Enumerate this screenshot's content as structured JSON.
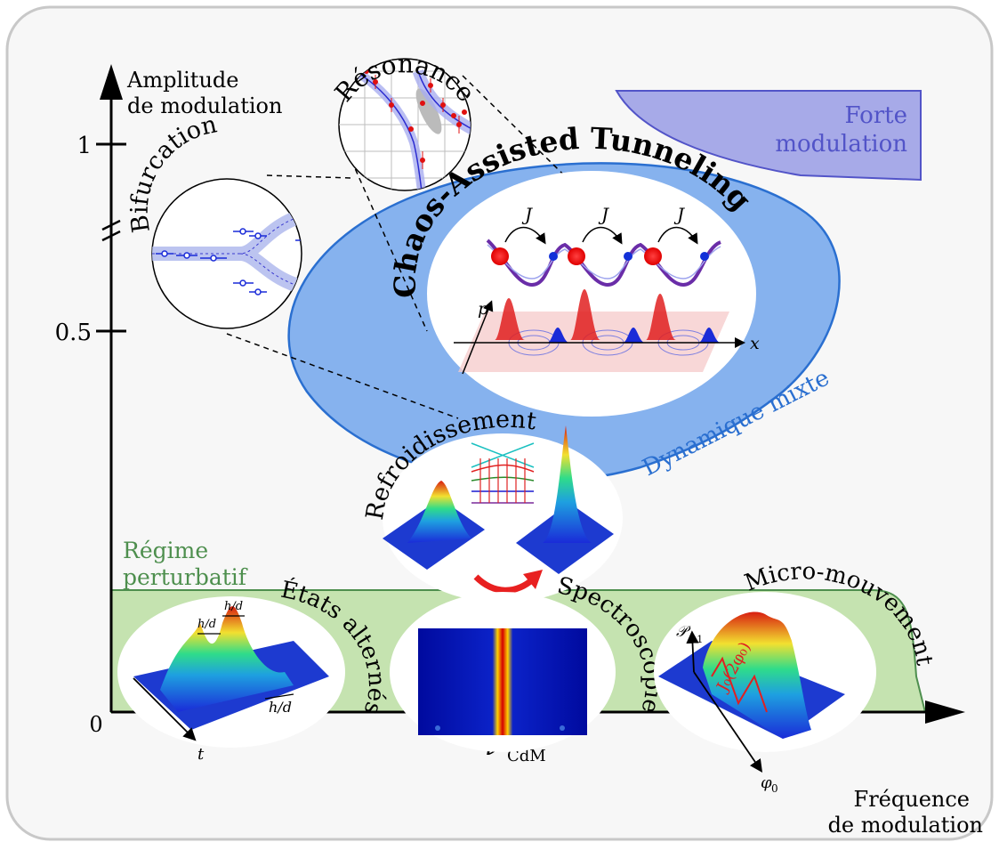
{
  "axes": {
    "y_label_line1": "Amplitude",
    "y_label_line2": "de modulation",
    "x_label_line1": "Fréquence",
    "x_label_line2": "de modulation",
    "origin": "0",
    "y_tick_1": "1",
    "y_tick_05": "0.5",
    "x_tick_symbol": "ν",
    "x_tick_sub": "CdM"
  },
  "regions": {
    "strong_line1": "Forte",
    "strong_line2": "modulation",
    "mixed": "Dynamique mixte",
    "cat": "Chaos-Assisted Tunneling",
    "perturbative_line1": "Régime",
    "perturbative_line2": "perturbatif"
  },
  "insets": {
    "resonance": "Résonance",
    "bifurcation": "Bifurcation",
    "cooling": "Refroidissement",
    "alternating": "États alternés",
    "spectroscopy": "Spectroscopie",
    "micromotion": "Micro-mouvement"
  },
  "cat_labels": {
    "coupling_1": "J",
    "coupling_2": "J",
    "coupling_3": "J",
    "momentum": "p",
    "position": "x"
  },
  "inset_labels": {
    "hd_1": "h/d",
    "hd_2": "h/d",
    "hd_3": "h/d",
    "time": "t",
    "phi_axis": "φ",
    "phi_sub": "0",
    "p_axis": "𝒫",
    "p_sub": "−1",
    "bessel": "J₀(2φ₀)"
  },
  "colors": {
    "background_box": "#f7f7f7",
    "green_region": "#c5e3b0",
    "green_text": "#4e8f4e",
    "blue_region": "#86b2ee",
    "blue_text": "#2a6fd0",
    "violet_region": "#a7aae8",
    "violet_text": "#5254c8"
  },
  "icons": [
    "arrow-up-icon",
    "arrow-right-icon",
    "curved-red-arrow-icon"
  ]
}
